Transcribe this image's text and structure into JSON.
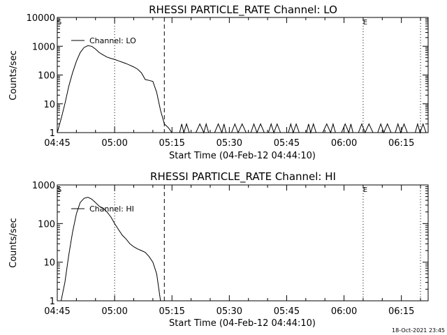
{
  "footer": {
    "timestamp": "18-Oct-2021 23:45"
  },
  "chart_data": [
    {
      "type": "line",
      "title": "RHESSI PARTICLE_RATE Channel: LO",
      "xlabel": "Start Time (04-Feb-12 04:44:10)",
      "ylabel": "Counts/sec",
      "xscale": "time",
      "yscale": "log",
      "xlim": [
        "04:45",
        "06:22"
      ],
      "ylim": [
        1,
        10000
      ],
      "xticks": [
        "04:45",
        "05:00",
        "05:15",
        "05:30",
        "05:45",
        "06:00",
        "06:15"
      ],
      "yticks": [
        "1",
        "10",
        "100",
        "1000",
        "10000"
      ],
      "markers_top": [
        {
          "time": "04:45",
          "label": "S"
        },
        {
          "time": "06:05",
          "label": "E"
        }
      ],
      "vlines": [
        {
          "time": "05:00",
          "style": "dotted"
        },
        {
          "time": "05:13",
          "style": "dashed"
        },
        {
          "time": "06:05",
          "style": "dotted"
        },
        {
          "time": "06:20",
          "style": "dotted"
        }
      ],
      "legend": {
        "placement": "top-left",
        "label": "Channel: LO"
      },
      "series": [
        {
          "name": "Channel: LO",
          "x": [
            "04:45:00",
            "04:46:00",
            "04:47:00",
            "04:48:00",
            "04:49:00",
            "04:50:00",
            "04:51:00",
            "04:52:00",
            "04:53:00",
            "04:54:00",
            "04:55:00",
            "04:56:00",
            "04:57:00",
            "04:58:00",
            "04:59:00",
            "05:00:00",
            "05:01:00",
            "05:02:00",
            "05:03:00",
            "05:04:00",
            "05:05:00",
            "05:06:00",
            "05:07:00",
            "05:08:00",
            "05:09:00",
            "05:10:00",
            "05:11:00",
            "05:12:00",
            "05:13:00",
            "05:14:00",
            "05:15:00",
            "05:16:00",
            "05:17:00"
          ],
          "values": [
            1,
            3,
            10,
            40,
            120,
            300,
            600,
            900,
            1050,
            1000,
            800,
            600,
            500,
            420,
            380,
            350,
            310,
            280,
            250,
            220,
            190,
            160,
            120,
            70,
            65,
            60,
            25,
            6,
            2,
            1.5,
            1,
            1,
            1
          ]
        }
      ]
    },
    {
      "type": "line",
      "title": "RHESSI PARTICLE_RATE Channel: HI",
      "xlabel": "Start Time (04-Feb-12 04:44:10)",
      "ylabel": "Counts/sec",
      "xscale": "time",
      "yscale": "log",
      "xlim": [
        "04:45",
        "06:22"
      ],
      "ylim": [
        1,
        1000
      ],
      "xticks": [
        "04:45",
        "05:00",
        "05:15",
        "05:30",
        "05:45",
        "06:00",
        "06:15"
      ],
      "yticks": [
        "1",
        "10",
        "100",
        "1000"
      ],
      "markers_top": [
        {
          "time": "04:45",
          "label": "S"
        },
        {
          "time": "06:05",
          "label": "E"
        }
      ],
      "vlines": [
        {
          "time": "05:00",
          "style": "dotted"
        },
        {
          "time": "05:13",
          "style": "dashed"
        },
        {
          "time": "06:05",
          "style": "dotted"
        },
        {
          "time": "06:20",
          "style": "dotted"
        }
      ],
      "legend": {
        "placement": "top-left",
        "label": "Channel: HI"
      },
      "series": [
        {
          "name": "Channel: HI",
          "x": [
            "04:46:00",
            "04:47:00",
            "04:48:00",
            "04:49:00",
            "04:50:00",
            "04:51:00",
            "04:52:00",
            "04:53:00",
            "04:54:00",
            "04:55:00",
            "04:56:00",
            "04:57:00",
            "04:58:00",
            "04:59:00",
            "05:00:00",
            "05:01:00",
            "05:02:00",
            "05:03:00",
            "05:04:00",
            "05:05:00",
            "05:06:00",
            "05:07:00",
            "05:08:00",
            "05:09:00",
            "05:10:00",
            "05:11:00",
            "05:12:00"
          ],
          "values": [
            1,
            3,
            15,
            60,
            180,
            350,
            450,
            480,
            430,
            350,
            280,
            250,
            200,
            150,
            100,
            70,
            50,
            40,
            30,
            25,
            22,
            20,
            18,
            14,
            10,
            5,
            1
          ]
        }
      ]
    }
  ]
}
